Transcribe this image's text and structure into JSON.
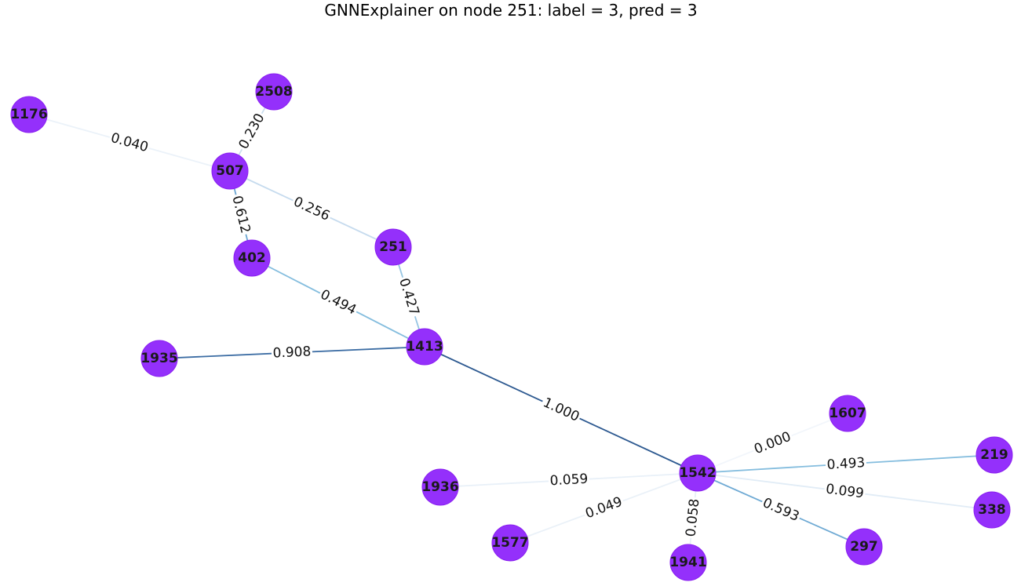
{
  "title": "GNNExplainer on node 251: label = 3, pred = 3",
  "colors": {
    "node_fill": "#9430FB",
    "node_stroke": "#8A1FF0",
    "edge_low": "#F2F5FA",
    "edge_high": "#2E5A91"
  },
  "nodes": [
    {
      "id": "1176"
    },
    {
      "id": "2508"
    },
    {
      "id": "507"
    },
    {
      "id": "402"
    },
    {
      "id": "251"
    },
    {
      "id": "1935"
    },
    {
      "id": "1413"
    },
    {
      "id": "1607"
    },
    {
      "id": "219"
    },
    {
      "id": "1542"
    },
    {
      "id": "1936"
    },
    {
      "id": "338"
    },
    {
      "id": "1577"
    },
    {
      "id": "297"
    },
    {
      "id": "1941"
    }
  ],
  "edges": [
    {
      "source": "1176",
      "target": "507",
      "weight": 0.04,
      "label": "0.040"
    },
    {
      "source": "2508",
      "target": "507",
      "weight": 0.23,
      "label": "0.230"
    },
    {
      "source": "507",
      "target": "251",
      "weight": 0.256,
      "label": "0.256"
    },
    {
      "source": "507",
      "target": "402",
      "weight": 0.612,
      "label": "0.612"
    },
    {
      "source": "402",
      "target": "1413",
      "weight": 0.494,
      "label": "0.494"
    },
    {
      "source": "251",
      "target": "1413",
      "weight": 0.427,
      "label": "0.427"
    },
    {
      "source": "1935",
      "target": "1413",
      "weight": 0.908,
      "label": "0.908"
    },
    {
      "source": "1413",
      "target": "1542",
      "weight": 1.0,
      "label": "1.000"
    },
    {
      "source": "1542",
      "target": "1607",
      "weight": 0.0,
      "label": "0.000"
    },
    {
      "source": "1542",
      "target": "219",
      "weight": 0.493,
      "label": "0.493"
    },
    {
      "source": "1542",
      "target": "338",
      "weight": 0.099,
      "label": "0.099"
    },
    {
      "source": "1542",
      "target": "297",
      "weight": 0.593,
      "label": "0.593"
    },
    {
      "source": "1542",
      "target": "1936",
      "weight": 0.059,
      "label": "0.059"
    },
    {
      "source": "1542",
      "target": "1577",
      "weight": 0.049,
      "label": "0.049"
    },
    {
      "source": "1542",
      "target": "1941",
      "weight": 0.058,
      "label": "0.058"
    }
  ]
}
